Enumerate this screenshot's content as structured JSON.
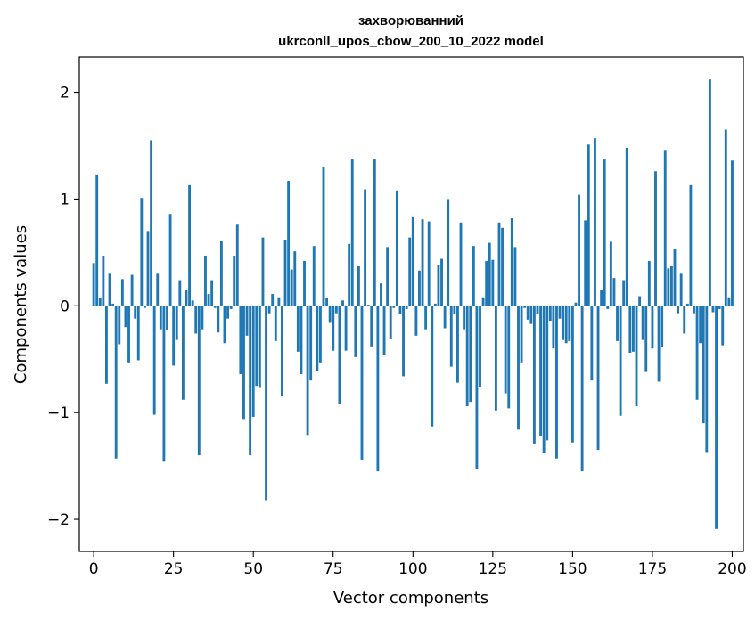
{
  "chart_data": {
    "type": "bar",
    "title_line1": "захворюванний",
    "title_line2": "ukrconll_upos_cbow_200_10_2022 model",
    "xlabel": "Vector components",
    "ylabel": "Components values",
    "xlim": [
      -4.5,
      203.5
    ],
    "ylim": [
      -2.3,
      2.33
    ],
    "xticks": [
      0,
      25,
      50,
      75,
      100,
      125,
      150,
      175,
      200
    ],
    "xtick_labels": [
      "0",
      "25",
      "50",
      "75",
      "100",
      "125",
      "150",
      "175",
      "200"
    ],
    "yticks": [
      -2,
      -1,
      0,
      1,
      2
    ],
    "ytick_labels": [
      "−2",
      "−1",
      "0",
      "1",
      "2"
    ],
    "bar_color": "#1f77b4",
    "values": [
      0.4,
      1.23,
      0.07,
      0.47,
      -0.73,
      0.3,
      0.02,
      -1.43,
      -0.36,
      0.25,
      -0.2,
      -0.53,
      0.29,
      -0.12,
      -0.51,
      1.01,
      -0.02,
      0.7,
      1.55,
      -1.02,
      0.3,
      -0.22,
      -1.46,
      -0.23,
      0.86,
      -0.56,
      -0.32,
      0.24,
      -0.88,
      0.15,
      1.13,
      0.05,
      -0.26,
      -1.4,
      -0.22,
      0.47,
      0.11,
      0.24,
      -0.02,
      -0.25,
      0.61,
      -0.35,
      -0.12,
      -0.03,
      0.47,
      0.76,
      -0.64,
      -1.06,
      -0.28,
      -1.4,
      -1.04,
      -0.75,
      -0.77,
      0.64,
      -1.82,
      -0.07,
      0.11,
      -0.33,
      0.08,
      -0.85,
      0.62,
      1.17,
      0.34,
      0.51,
      -0.43,
      -0.64,
      0.42,
      -1.21,
      -0.7,
      0.56,
      -0.61,
      -0.53,
      1.3,
      0.07,
      -0.16,
      -0.42,
      -0.07,
      -0.92,
      0.05,
      -0.42,
      0.58,
      1.37,
      -0.48,
      0.37,
      -1.44,
      1.09,
      0.01,
      -0.38,
      1.37,
      -1.55,
      0.21,
      -0.46,
      0.55,
      -0.31,
      -0.02,
      1.08,
      -0.08,
      -0.66,
      -0.03,
      0.64,
      0.83,
      -0.28,
      0.33,
      0.81,
      -0.22,
      0.79,
      -1.13,
      0.02,
      0.38,
      0.44,
      -0.21,
      1.0,
      -0.57,
      -0.08,
      -0.72,
      0.78,
      -0.22,
      -0.94,
      -0.9,
      0.56,
      -1.53,
      -0.76,
      0.08,
      0.42,
      0.59,
      0.43,
      -0.98,
      0.78,
      0.73,
      -0.82,
      -0.96,
      0.82,
      0.55,
      -1.16,
      -0.53,
      -0.02,
      -0.13,
      -0.17,
      -1.29,
      -0.08,
      -1.22,
      -1.38,
      -1.26,
      -0.14,
      -0.4,
      -1.43,
      -0.12,
      -0.32,
      -0.35,
      -0.33,
      -1.28,
      0.03,
      1.04,
      -1.55,
      0.8,
      1.51,
      -0.7,
      1.57,
      -1.35,
      0.15,
      1.37,
      -0.03,
      0.6,
      0.26,
      -0.33,
      -1.03,
      0.24,
      1.48,
      -0.44,
      -0.43,
      -0.94,
      0.09,
      -0.32,
      -0.62,
      0.42,
      -0.4,
      1.26,
      -0.71,
      -0.39,
      1.46,
      0.35,
      0.37,
      0.53,
      -0.07,
      0.3,
      -0.26,
      0.02,
      1.13,
      -0.07,
      -0.88,
      -0.35,
      -1.1,
      -1.37,
      2.12,
      -0.06,
      -2.09,
      -0.03,
      -0.37,
      1.65,
      0.08,
      1.36
    ]
  }
}
